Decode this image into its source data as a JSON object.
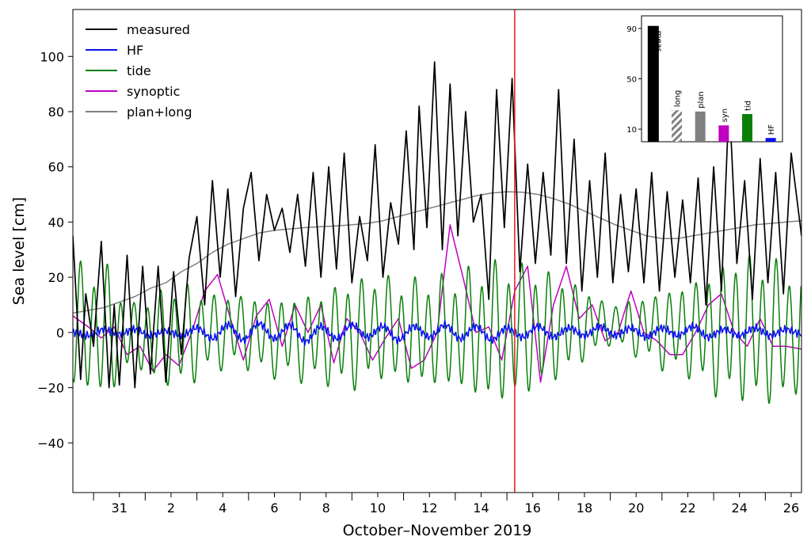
{
  "chart_data": [
    {
      "type": "line",
      "title": "",
      "xlabel": "October–November 2019",
      "ylabel": "Sea level [cm]",
      "xlim": [
        29.2,
        57.4
      ],
      "ylim": [
        -58,
        117
      ],
      "xtick_values": [
        31,
        33,
        35,
        37,
        39,
        41,
        43,
        45,
        47,
        49,
        51,
        53,
        55,
        57
      ],
      "xtick_labels": [
        "31",
        "2",
        "4",
        "6",
        "8",
        "10",
        "12",
        "14",
        "16",
        "18",
        "20",
        "22",
        "24",
        "26"
      ],
      "minor_xtick_values": [
        30,
        32,
        34,
        36,
        38,
        40,
        42,
        44,
        46,
        48,
        50,
        52,
        54,
        56
      ],
      "ytick_values": [
        -40,
        -20,
        0,
        20,
        40,
        60,
        80,
        100
      ],
      "ytick_labels": [
        "−40",
        "−20",
        "0",
        "20",
        "40",
        "60",
        "80",
        "100"
      ],
      "grid": false,
      "legend_position": "top-left",
      "marker_line": {
        "x": 46.3,
        "color": "#e41a1c"
      },
      "series": [
        {
          "name": "measured",
          "color": "#000000",
          "x": [
            29.2,
            29.5,
            29.7,
            30.0,
            30.3,
            30.6,
            30.8,
            31.0,
            31.3,
            31.6,
            31.9,
            32.2,
            32.5,
            32.8,
            33.1,
            33.4,
            33.7,
            34.0,
            34.3,
            34.6,
            34.9,
            35.2,
            35.5,
            35.8,
            36.1,
            36.4,
            36.7,
            37.0,
            37.3,
            37.6,
            37.9,
            38.2,
            38.5,
            38.8,
            39.1,
            39.4,
            39.7,
            40.0,
            40.3,
            40.6,
            40.9,
            41.2,
            41.5,
            41.8,
            42.1,
            42.4,
            42.6,
            42.9,
            43.2,
            43.5,
            43.8,
            44.1,
            44.4,
            44.7,
            45.0,
            45.3,
            45.6,
            45.9,
            46.2,
            46.5,
            46.8,
            47.1,
            47.4,
            47.7,
            48.0,
            48.3,
            48.6,
            48.9,
            49.2,
            49.5,
            49.8,
            50.1,
            50.4,
            50.7,
            51.0,
            51.3,
            51.6,
            51.9,
            52.2,
            52.5,
            52.8,
            53.1,
            53.4,
            53.7,
            54.0,
            54.3,
            54.6,
            54.9,
            55.2,
            55.5,
            55.8,
            56.1,
            56.4,
            56.7,
            57.0,
            57.4
          ],
          "y": [
            35,
            -17,
            14,
            -5,
            33,
            -20,
            10,
            -19,
            28,
            -20,
            24,
            -15,
            24,
            -18,
            22,
            -8,
            27,
            42,
            10,
            55,
            20,
            52,
            13,
            45,
            58,
            26,
            50,
            37,
            45,
            29,
            50,
            24,
            58,
            20,
            60,
            23,
            65,
            18,
            42,
            26,
            68,
            20,
            47,
            32,
            73,
            30,
            82,
            38,
            98,
            30,
            90,
            35,
            80,
            40,
            50,
            12,
            88,
            38,
            92,
            22,
            61,
            25,
            58,
            28,
            88,
            25,
            70,
            15,
            55,
            20,
            65,
            18,
            50,
            22,
            52,
            18,
            58,
            15,
            51,
            20,
            48,
            18,
            56,
            10,
            60,
            15,
            85,
            25,
            55,
            12,
            63,
            18,
            58,
            14,
            65,
            35
          ]
        },
        {
          "name": "HF",
          "color": "#0a10f0",
          "x": [
            29.2,
            29.8,
            30.4,
            31.0,
            31.6,
            32.2,
            32.8,
            33.4,
            34.0,
            34.6,
            35.2,
            35.8,
            36.4,
            37.0,
            37.6,
            38.2,
            38.8,
            39.4,
            40.0,
            40.6,
            41.2,
            41.8,
            42.4,
            43.0,
            43.6,
            44.2,
            44.8,
            45.4,
            46.0,
            46.6,
            47.2,
            47.8,
            48.4,
            49.0,
            49.6,
            50.2,
            50.8,
            51.4,
            52.0,
            52.6,
            53.2,
            53.8,
            54.4,
            55.0,
            55.6,
            56.2,
            56.8,
            57.4
          ],
          "y": [
            0,
            -2,
            2,
            -1,
            2,
            -2,
            1,
            -2,
            3,
            -4,
            5,
            -5,
            6,
            -4,
            5,
            -6,
            4,
            -4,
            5,
            -3,
            4,
            -5,
            4,
            -3,
            5,
            -4,
            4,
            -5,
            3,
            -3,
            4,
            -3,
            3,
            -2,
            4,
            -2,
            3,
            -3,
            3,
            -2,
            4,
            -3,
            2,
            -2,
            3,
            -2,
            2,
            -1
          ]
        },
        {
          "name": "tide",
          "color": "#0a800a",
          "type": "semidiurnal",
          "base_x": [
            29.2,
            30.5,
            31.5,
            32.5,
            33.5,
            34.5,
            35.5,
            37.0,
            38.5,
            40.0,
            41.0,
            42.0,
            43.0,
            44.0,
            45.0,
            46.0,
            47.0,
            48.0,
            49.0,
            50.0,
            51.0,
            52.0,
            53.0,
            54.0,
            55.0,
            56.0,
            57.4
          ],
          "base_y": [
            2,
            0,
            -1,
            -2,
            -1,
            0,
            1,
            -2,
            -2,
            -1,
            2,
            0,
            0,
            0,
            0,
            0,
            1,
            2,
            3,
            3,
            2,
            1,
            1,
            0,
            2,
            0,
            0
          ],
          "amp_x": [
            29.2,
            30.5,
            31.5,
            32.5,
            33.5,
            34.5,
            35.5,
            37.0,
            38.5,
            40.0,
            41.0,
            42.0,
            43.0,
            44.0,
            45.0,
            46.0,
            47.0,
            48.0,
            49.0,
            50.0,
            51.0,
            52.0,
            53.0,
            54.0,
            55.0,
            56.0,
            57.4
          ],
          "amp_y": [
            24,
            25,
            12,
            18,
            20,
            15,
            14,
            15,
            17,
            21,
            20,
            20,
            21,
            22,
            26,
            27,
            24,
            20,
            14,
            8,
            11,
            15,
            18,
            24,
            28,
            28,
            25
          ]
        },
        {
          "name": "synoptic",
          "color": "#c000c0",
          "x": [
            29.2,
            29.8,
            30.3,
            30.8,
            31.3,
            31.8,
            32.3,
            32.8,
            33.3,
            33.8,
            34.3,
            34.8,
            35.3,
            35.8,
            36.3,
            36.8,
            37.3,
            37.8,
            38.3,
            38.8,
            39.3,
            39.8,
            40.3,
            40.8,
            41.3,
            41.8,
            42.3,
            42.8,
            43.3,
            43.8,
            44.3,
            44.8,
            45.3,
            45.8,
            46.3,
            46.8,
            47.3,
            47.8,
            48.3,
            48.8,
            49.3,
            49.8,
            50.3,
            50.8,
            51.3,
            51.8,
            52.3,
            52.8,
            53.3,
            53.8,
            54.3,
            54.8,
            55.3,
            55.8,
            56.3,
            56.8,
            57.4
          ],
          "y": [
            6,
            2,
            -2,
            2,
            -8,
            -5,
            -14,
            -8,
            -12,
            0,
            15,
            21,
            5,
            -10,
            6,
            12,
            -5,
            10,
            0,
            10,
            -11,
            5,
            0,
            -10,
            -2,
            5,
            -13,
            -10,
            0,
            39,
            20,
            0,
            2,
            -10,
            15,
            24,
            -18,
            10,
            24,
            5,
            10,
            -3,
            0,
            15,
            0,
            -3,
            -8,
            -8,
            0,
            10,
            14,
            0,
            -5,
            5,
            -5,
            -5,
            -6
          ]
        },
        {
          "name": "plan+long",
          "color": "#808080",
          "x": [
            29.2,
            29.8,
            30.4,
            31.0,
            31.6,
            32.2,
            32.8,
            33.4,
            34.0,
            34.6,
            35.2,
            35.8,
            36.4,
            37.0,
            37.6,
            38.2,
            38.8,
            39.4,
            40.0,
            40.6,
            41.2,
            41.8,
            42.4,
            43.0,
            43.6,
            44.2,
            44.8,
            45.4,
            46.0,
            46.6,
            47.2,
            47.8,
            48.4,
            49.0,
            49.6,
            50.2,
            50.8,
            51.4,
            52.0,
            52.6,
            53.2,
            53.8,
            54.4,
            55.0,
            55.6,
            56.2,
            56.8,
            57.4
          ],
          "y": [
            7,
            8,
            9,
            11,
            13,
            16,
            18,
            22,
            25,
            29,
            32,
            34,
            36,
            37,
            37.5,
            38,
            38.3,
            38.6,
            39,
            39.5,
            40.5,
            42,
            43.5,
            45,
            46.5,
            48,
            49.5,
            50.5,
            51,
            50.8,
            50,
            48.5,
            46.5,
            44,
            41.5,
            39,
            37,
            35,
            34,
            34,
            35,
            36,
            37,
            38,
            39,
            39.5,
            40,
            40.5
          ]
        }
      ]
    },
    {
      "type": "bar",
      "title": "",
      "categories": [
        "meas",
        "long",
        "plan",
        "syn",
        "tid",
        "HF"
      ],
      "values": [
        92,
        25,
        24,
        13,
        22,
        3
      ],
      "colors": [
        "#000000",
        "#808080",
        "#808080",
        "#c000c0",
        "#0a800a",
        "#0a10f0"
      ],
      "hatched": [
        false,
        true,
        false,
        false,
        false,
        false
      ],
      "ytick_values": [
        10,
        50,
        90
      ],
      "ytick_labels": [
        "10",
        "50",
        "90"
      ],
      "ylim": [
        0,
        100
      ],
      "legend_position": "top-right inset"
    }
  ]
}
